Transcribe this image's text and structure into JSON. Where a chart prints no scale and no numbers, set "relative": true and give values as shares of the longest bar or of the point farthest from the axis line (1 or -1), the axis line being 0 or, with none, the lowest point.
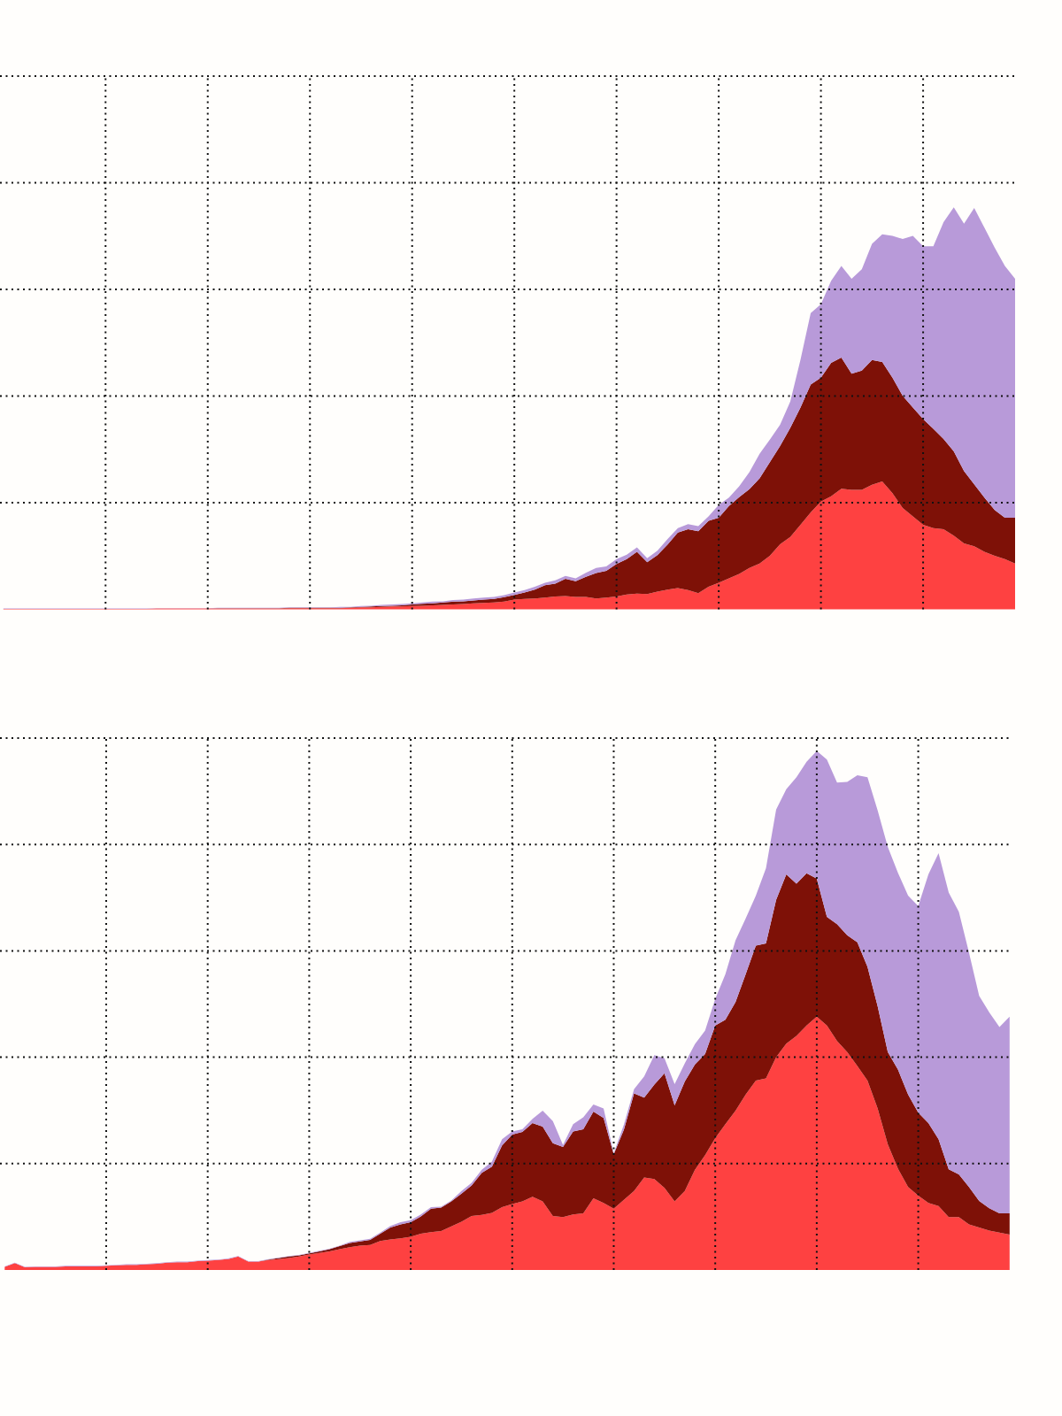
{
  "chart_data": [
    {
      "type": "area",
      "stacked": true,
      "relative": true,
      "grid": true,
      "categories": [
        null,
        null,
        null,
        null,
        null,
        null,
        null,
        null,
        null,
        null,
        null,
        null,
        null,
        null,
        null,
        null,
        null,
        null,
        null,
        null,
        null,
        null,
        null,
        null,
        null,
        null,
        null,
        null,
        null,
        null,
        null,
        null,
        null,
        null,
        null,
        null,
        null,
        null,
        null,
        null,
        null,
        null,
        null,
        null,
        null,
        null,
        null,
        null,
        null,
        null,
        null,
        null,
        null,
        null,
        null,
        null,
        null,
        null,
        null,
        null,
        null,
        null,
        null,
        null,
        null,
        null,
        null,
        null,
        null,
        null,
        null,
        null,
        null,
        null,
        null,
        null,
        null,
        null,
        null,
        null,
        null,
        null,
        null,
        null,
        null,
        null,
        null,
        null,
        null,
        null,
        null,
        null,
        null,
        null,
        null,
        null,
        null,
        null,
        null,
        null
      ],
      "series": [
        {
          "color": "#fe4141",
          "values": [
            0.001,
            0.001,
            0.001,
            0.001,
            0.001,
            0.001,
            0.001,
            0.001,
            0.001,
            0.001,
            0.001,
            0.001,
            0.001,
            0.001,
            0.001,
            0.002,
            0.002,
            0.002,
            0.002,
            0.002,
            0.002,
            0.002,
            0.002,
            0.002,
            0.002,
            0.002,
            0.002,
            0.002,
            0.003,
            0.003,
            0.003,
            0.003,
            0.003,
            0.003,
            0.004,
            0.005,
            0.005,
            0.006,
            0.007,
            0.007,
            0.008,
            0.009,
            0.01,
            0.011,
            0.012,
            0.013,
            0.015,
            0.016,
            0.017,
            0.019,
            0.024,
            0.026,
            0.027,
            0.029,
            0.032,
            0.033,
            0.031,
            0.031,
            0.027,
            0.029,
            0.032,
            0.037,
            0.039,
            0.038,
            0.044,
            0.049,
            0.053,
            0.048,
            0.04,
            0.056,
            0.066,
            0.077,
            0.088,
            0.103,
            0.114,
            0.133,
            0.162,
            0.18,
            0.21,
            0.241,
            0.268,
            0.281,
            0.3,
            0.297,
            0.297,
            0.31,
            0.318,
            0.289,
            0.252,
            0.231,
            0.21,
            0.202,
            0.199,
            0.183,
            0.164,
            0.157,
            0.143,
            0.133,
            0.125,
            0.114
          ]
        },
        {
          "color": "#7e1107",
          "values": [
            0,
            0,
            0,
            0,
            0,
            0,
            0,
            0,
            0,
            0,
            0,
            0,
            0,
            0,
            0,
            0,
            0,
            0,
            0,
            0,
            0,
            0.001,
            0.001,
            0.001,
            0.001,
            0.001,
            0.001,
            0.001,
            0.001,
            0.001,
            0.001,
            0.001,
            0.001,
            0.001,
            0.001,
            0.001,
            0.002,
            0.002,
            0.002,
            0.003,
            0.004,
            0.005,
            0.005,
            0.006,
            0.007,
            0.007,
            0.007,
            0.008,
            0.009,
            0.011,
            0.012,
            0.016,
            0.022,
            0.031,
            0.032,
            0.043,
            0.039,
            0.05,
            0.063,
            0.067,
            0.081,
            0.088,
            0.104,
            0.079,
            0.091,
            0.112,
            0.138,
            0.151,
            0.154,
            0.164,
            0.162,
            0.18,
            0.191,
            0.196,
            0.212,
            0.233,
            0.244,
            0.271,
            0.292,
            0.318,
            0.308,
            0.332,
            0.326,
            0.289,
            0.297,
            0.31,
            0.297,
            0.287,
            0.279,
            0.271,
            0.263,
            0.247,
            0.225,
            0.21,
            0.18,
            0.154,
            0.135,
            0.114,
            0.103,
            0.114
          ]
        },
        {
          "color": "#b89ad9",
          "values": [
            0.001,
            0.001,
            0.001,
            0.001,
            0.001,
            0.001,
            0.001,
            0.001,
            0.001,
            0.001,
            0.001,
            0.001,
            0.001,
            0.001,
            0.001,
            0.001,
            0.001,
            0.001,
            0.001,
            0.001,
            0.001,
            0.001,
            0.001,
            0.001,
            0.001,
            0.001,
            0.001,
            0.001,
            0.001,
            0.001,
            0.001,
            0.001,
            0.001,
            0.002,
            0.001,
            0.002,
            0.002,
            0.003,
            0.003,
            0.003,
            0.003,
            0.003,
            0.004,
            0.003,
            0.004,
            0.004,
            0.005,
            0.005,
            0.005,
            0.005,
            0.006,
            0.006,
            0.007,
            0.006,
            0.008,
            0.007,
            0.007,
            0.01,
            0.013,
            0.011,
            0.012,
            0.011,
            0.011,
            0.01,
            0.011,
            0.014,
            0.011,
            0.013,
            0.013,
            0.011,
            0.032,
            0.021,
            0.027,
            0.042,
            0.061,
            0.056,
            0.053,
            0.066,
            0.119,
            0.178,
            0.183,
            0.204,
            0.228,
            0.236,
            0.252,
            0.289,
            0.318,
            0.353,
            0.39,
            0.427,
            0.43,
            0.454,
            0.539,
            0.607,
            0.615,
            0.687,
            0.671,
            0.653,
            0.626,
            0.594
          ]
        }
      ]
    },
    {
      "type": "area",
      "stacked": true,
      "relative": true,
      "grid": true,
      "categories": [
        null,
        null,
        null,
        null,
        null,
        null,
        null,
        null,
        null,
        null,
        null,
        null,
        null,
        null,
        null,
        null,
        null,
        null,
        null,
        null,
        null,
        null,
        null,
        null,
        null,
        null,
        null,
        null,
        null,
        null,
        null,
        null,
        null,
        null,
        null,
        null,
        null,
        null,
        null,
        null,
        null,
        null,
        null,
        null,
        null,
        null,
        null,
        null,
        null,
        null,
        null,
        null,
        null,
        null,
        null,
        null,
        null,
        null,
        null,
        null,
        null,
        null,
        null,
        null,
        null,
        null,
        null,
        null,
        null,
        null,
        null,
        null,
        null,
        null,
        null,
        null,
        null,
        null,
        null,
        null,
        null,
        null,
        null,
        null,
        null,
        null,
        null,
        null,
        null,
        null,
        null,
        null,
        null,
        null,
        null,
        null,
        null,
        null,
        null,
        null
      ],
      "series": [
        {
          "color": "#fe4141",
          "values": [
            0.006,
            0.013,
            0.005,
            0.006,
            0.006,
            0.006,
            0.007,
            0.007,
            0.007,
            0.007,
            0.008,
            0.009,
            0.01,
            0.01,
            0.011,
            0.012,
            0.014,
            0.015,
            0.015,
            0.017,
            0.018,
            0.019,
            0.021,
            0.026,
            0.016,
            0.016,
            0.019,
            0.021,
            0.023,
            0.026,
            0.03,
            0.033,
            0.036,
            0.04,
            0.044,
            0.047,
            0.048,
            0.056,
            0.059,
            0.061,
            0.064,
            0.07,
            0.073,
            0.075,
            0.084,
            0.093,
            0.104,
            0.106,
            0.11,
            0.121,
            0.127,
            0.132,
            0.141,
            0.132,
            0.104,
            0.102,
            0.107,
            0.109,
            0.138,
            0.129,
            0.118,
            0.135,
            0.152,
            0.178,
            0.175,
            0.158,
            0.132,
            0.152,
            0.193,
            0.221,
            0.254,
            0.281,
            0.307,
            0.338,
            0.365,
            0.369,
            0.41,
            0.436,
            0.451,
            0.471,
            0.488,
            0.471,
            0.441,
            0.42,
            0.393,
            0.365,
            0.311,
            0.242,
            0.195,
            0.16,
            0.143,
            0.129,
            0.123,
            0.102,
            0.102,
            0.088,
            0.082,
            0.076,
            0.072,
            0.068
          ]
        },
        {
          "color": "#7e1107",
          "values": [
            0,
            0,
            0,
            0,
            0,
            0,
            0,
            0,
            0,
            0,
            0,
            0,
            0,
            0,
            0,
            0,
            0,
            0,
            0,
            0,
            0,
            0,
            0,
            0,
            0,
            0,
            0.001,
            0.002,
            0.003,
            0.002,
            0.002,
            0.003,
            0.004,
            0.006,
            0.008,
            0.008,
            0.01,
            0.014,
            0.023,
            0.027,
            0.028,
            0.033,
            0.045,
            0.045,
            0.048,
            0.054,
            0.059,
            0.081,
            0.089,
            0.119,
            0.134,
            0.134,
            0.142,
            0.144,
            0.14,
            0.135,
            0.16,
            0.162,
            0.167,
            0.164,
            0.105,
            0.135,
            0.188,
            0.154,
            0.182,
            0.221,
            0.185,
            0.211,
            0.203,
            0.195,
            0.217,
            0.201,
            0.209,
            0.232,
            0.26,
            0.26,
            0.303,
            0.326,
            0.293,
            0.293,
            0.266,
            0.209,
            0.225,
            0.225,
            0.238,
            0.219,
            0.197,
            0.178,
            0.191,
            0.178,
            0.16,
            0.154,
            0.129,
            0.092,
            0.082,
            0.072,
            0.051,
            0.043,
            0.037,
            0.041
          ]
        },
        {
          "color": "#b89ad9",
          "values": [
            0.001,
            0.001,
            0.001,
            0.001,
            0.001,
            0.001,
            0.001,
            0.001,
            0.001,
            0.001,
            0.001,
            0.001,
            0.001,
            0.001,
            0.001,
            0.001,
            0.001,
            0.001,
            0.001,
            0.001,
            0.001,
            0.001,
            0.001,
            0.001,
            0.001,
            0.001,
            0.001,
            0.001,
            0.001,
            0.001,
            0.001,
            0.001,
            0.001,
            0.001,
            0.002,
            0.002,
            0.002,
            0.002,
            0.003,
            0.004,
            0.004,
            0.004,
            0.003,
            0.002,
            0.002,
            0.005,
            0.005,
            0.006,
            0.01,
            0.012,
            0.006,
            0.005,
            0.008,
            0.031,
            0.043,
            0.004,
            0.014,
            0.023,
            0.014,
            0.018,
            0.002,
            0.01,
            0.008,
            0.041,
            0.057,
            0.029,
            0.041,
            0.035,
            0.039,
            0.045,
            0.051,
            0.088,
            0.119,
            0.107,
            0.096,
            0.145,
            0.174,
            0.164,
            0.205,
            0.215,
            0.246,
            0.303,
            0.273,
            0.295,
            0.322,
            0.365,
            0.377,
            0.395,
            0.379,
            0.383,
            0.398,
            0.479,
            0.551,
            0.533,
            0.506,
            0.451,
            0.395,
            0.377,
            0.359,
            0.379
          ]
        }
      ]
    }
  ]
}
